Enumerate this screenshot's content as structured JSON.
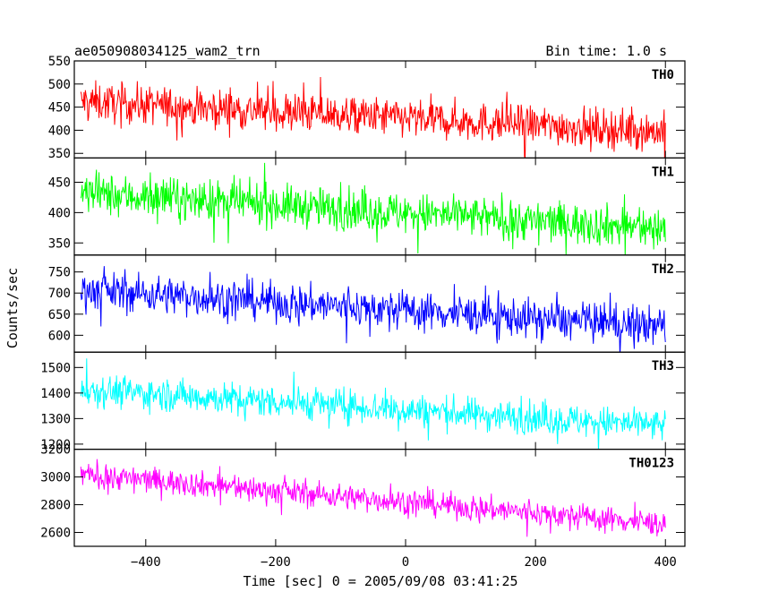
{
  "header": {
    "title": "ae050908034125_wam2_trn",
    "bin_time": "Bin time: 1.0 s"
  },
  "chart_data": {
    "type": "line",
    "xlabel": "Time [sec] 0 = 2005/09/08 03:41:25",
    "ylabel": "Counts/sec",
    "xlim": [
      -510,
      430
    ],
    "x_ticks": [
      -400,
      -200,
      0,
      200,
      400
    ],
    "x_range": [
      -500,
      400
    ],
    "bin_seconds": 1.0,
    "series": [
      {
        "name": "TH0",
        "color": "#ff0000",
        "ylim": [
          340,
          550
        ],
        "y_ticks": [
          350,
          400,
          450,
          500,
          550
        ],
        "trend_start": 462,
        "trend_end": 397,
        "noise_amplitude": 30
      },
      {
        "name": "TH1",
        "color": "#00ff00",
        "ylim": [
          330,
          490
        ],
        "y_ticks": [
          350,
          400,
          450
        ],
        "trend_start": 432,
        "trend_end": 373,
        "noise_amplitude": 24
      },
      {
        "name": "TH2",
        "color": "#0000ff",
        "ylim": [
          560,
          790
        ],
        "y_ticks": [
          600,
          650,
          700,
          750
        ],
        "trend_start": 708,
        "trend_end": 620,
        "noise_amplitude": 32
      },
      {
        "name": "TH3",
        "color": "#00ffff",
        "ylim": [
          1180,
          1560
        ],
        "y_ticks": [
          1200,
          1300,
          1400,
          1500
        ],
        "trend_start": 1415,
        "trend_end": 1270,
        "noise_amplitude": 45
      },
      {
        "name": "TH0123",
        "color": "#ff00ff",
        "ylim": [
          2500,
          3200
        ],
        "y_ticks": [
          2600,
          2800,
          3000,
          3200
        ],
        "trend_start": 3020,
        "trend_end": 2660,
        "noise_amplitude": 65
      }
    ]
  }
}
